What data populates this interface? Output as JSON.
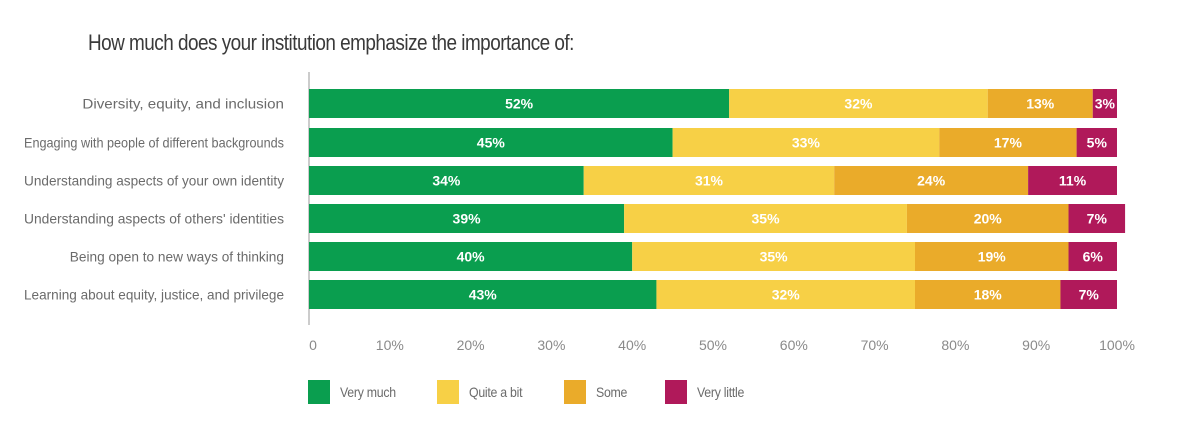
{
  "chart_data": {
    "type": "bar",
    "orientation": "horizontal",
    "stacked": true,
    "title": "How much does your institution emphasize the importance of:",
    "categories": [
      "Diversity, equity, and inclusion",
      "Engaging with people of different backgrounds",
      "Understanding aspects of your own identity",
      "Understanding aspects of others' identities",
      "Being open to new ways of thinking",
      "Learning about equity, justice, and privilege"
    ],
    "series": [
      {
        "name": "Very much",
        "color": "#0a9e4f",
        "text_color": "#ffffff",
        "values": [
          52,
          45,
          34,
          39,
          40,
          43
        ]
      },
      {
        "name": "Quite a bit",
        "color": "#f7d046",
        "text_color": "#ffffff",
        "values": [
          32,
          33,
          31,
          35,
          35,
          32
        ]
      },
      {
        "name": "Some",
        "color": "#eaab2a",
        "text_color": "#ffffff",
        "values": [
          13,
          17,
          24,
          20,
          19,
          18
        ]
      },
      {
        "name": "Very little",
        "color": "#b0195a",
        "text_color": "#ffffff",
        "values": [
          3,
          5,
          11,
          7,
          6,
          7
        ]
      }
    ],
    "xlim": [
      0,
      100
    ],
    "xticks": [
      "0",
      "10%",
      "20%",
      "30%",
      "40%",
      "50%",
      "60%",
      "70%",
      "80%",
      "90%",
      "100%"
    ],
    "value_suffix": "%",
    "legend_position": "bottom-left",
    "grid": false
  }
}
